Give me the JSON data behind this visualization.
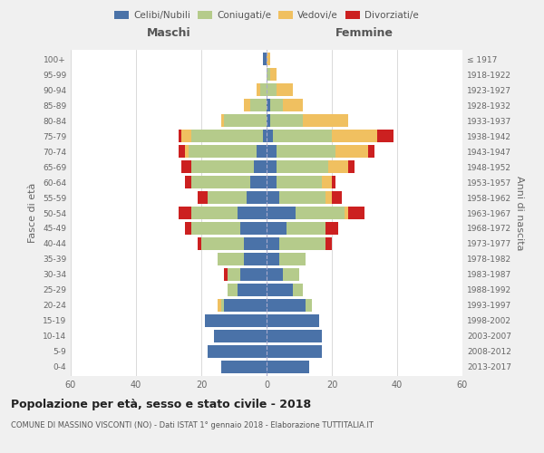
{
  "age_groups": [
    "0-4",
    "5-9",
    "10-14",
    "15-19",
    "20-24",
    "25-29",
    "30-34",
    "35-39",
    "40-44",
    "45-49",
    "50-54",
    "55-59",
    "60-64",
    "65-69",
    "70-74",
    "75-79",
    "80-84",
    "85-89",
    "90-94",
    "95-99",
    "100+"
  ],
  "birth_years": [
    "2013-2017",
    "2008-2012",
    "2003-2007",
    "1998-2002",
    "1993-1997",
    "1988-1992",
    "1983-1987",
    "1978-1982",
    "1973-1977",
    "1968-1972",
    "1963-1967",
    "1958-1962",
    "1953-1957",
    "1948-1952",
    "1943-1947",
    "1938-1942",
    "1933-1937",
    "1928-1932",
    "1923-1927",
    "1918-1922",
    "≤ 1917"
  ],
  "male": {
    "celibi": [
      14,
      18,
      16,
      19,
      13,
      9,
      8,
      7,
      7,
      8,
      9,
      6,
      5,
      4,
      3,
      1,
      0,
      0,
      0,
      0,
      1
    ],
    "coniugati": [
      0,
      0,
      0,
      0,
      1,
      3,
      4,
      8,
      13,
      15,
      14,
      12,
      18,
      19,
      21,
      22,
      13,
      5,
      2,
      0,
      0
    ],
    "vedovi": [
      0,
      0,
      0,
      0,
      1,
      0,
      0,
      0,
      0,
      0,
      0,
      0,
      0,
      0,
      1,
      3,
      1,
      2,
      1,
      0,
      0
    ],
    "divorziati": [
      0,
      0,
      0,
      0,
      0,
      0,
      1,
      0,
      1,
      2,
      4,
      3,
      2,
      3,
      2,
      1,
      0,
      0,
      0,
      0,
      0
    ]
  },
  "female": {
    "nubili": [
      13,
      17,
      17,
      16,
      12,
      8,
      5,
      4,
      4,
      6,
      9,
      4,
      3,
      3,
      3,
      2,
      1,
      1,
      0,
      0,
      0
    ],
    "coniugate": [
      0,
      0,
      0,
      0,
      2,
      3,
      5,
      8,
      14,
      12,
      15,
      14,
      14,
      16,
      18,
      18,
      10,
      4,
      3,
      1,
      0
    ],
    "vedove": [
      0,
      0,
      0,
      0,
      0,
      0,
      0,
      0,
      0,
      0,
      1,
      2,
      3,
      6,
      10,
      14,
      14,
      6,
      5,
      2,
      1
    ],
    "divorziate": [
      0,
      0,
      0,
      0,
      0,
      0,
      0,
      0,
      2,
      4,
      5,
      3,
      1,
      2,
      2,
      5,
      0,
      0,
      0,
      0,
      0
    ]
  },
  "colors": {
    "celibi": "#4a72a8",
    "coniugati": "#b5cb8b",
    "vedovi": "#f0c060",
    "divorziati": "#cc2020"
  },
  "title": "Popolazione per età, sesso e stato civile - 2018",
  "subtitle": "COMUNE DI MASSINO VISCONTI (NO) - Dati ISTAT 1° gennaio 2018 - Elaborazione TUTTITALIA.IT",
  "xlabel_left": "Maschi",
  "xlabel_right": "Femmine",
  "ylabel_left": "Fasce di età",
  "ylabel_right": "Anni di nascita",
  "xlim": 60,
  "background_color": "#f0f0f0",
  "plot_bg": "#ffffff"
}
